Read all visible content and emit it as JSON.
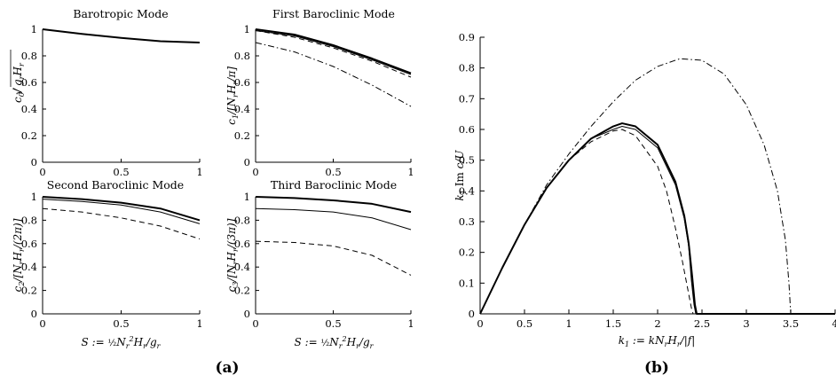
{
  "panel_labels": [
    "(a)",
    "(b)"
  ],
  "chart_data": [
    {
      "type": "line",
      "title": "Barotropic Mode",
      "xlabel": "",
      "ylabel": "c0/√(gr Hr)",
      "xlim": [
        0,
        1
      ],
      "ylim": [
        0,
        1
      ],
      "xticks": [
        "0",
        "0.5",
        "1"
      ],
      "yticks": [
        "0",
        "0.2",
        "0.4",
        "0.6",
        "0.8",
        "1"
      ],
      "x": [
        0,
        0.25,
        0.5,
        0.75,
        1.0
      ],
      "series": [
        {
          "style": "solid-thick",
          "values": [
            1.0,
            0.965,
            0.935,
            0.91,
            0.9
          ]
        }
      ]
    },
    {
      "type": "line",
      "title": "First Baroclinic Mode",
      "xlabel": "",
      "ylabel": "c1/[Nr Hr/π]",
      "xlim": [
        0,
        1
      ],
      "ylim": [
        0,
        1
      ],
      "xticks": [
        "0",
        "0.5",
        "1"
      ],
      "yticks": [
        "0",
        "0.2",
        "0.4",
        "0.6",
        "0.8",
        "1"
      ],
      "x": [
        0,
        0.25,
        0.5,
        0.75,
        1.0
      ],
      "series": [
        {
          "style": "solid-thick",
          "values": [
            1.0,
            0.96,
            0.88,
            0.78,
            0.67
          ]
        },
        {
          "style": "solid-thin",
          "values": [
            0.99,
            0.95,
            0.87,
            0.77,
            0.66
          ]
        },
        {
          "style": "dashed",
          "values": [
            0.99,
            0.94,
            0.86,
            0.76,
            0.64
          ]
        },
        {
          "style": "dashdot",
          "values": [
            0.9,
            0.83,
            0.72,
            0.58,
            0.42
          ]
        }
      ]
    },
    {
      "type": "line",
      "title": "Second Baroclinic Mode",
      "xlabel": "S := ½ Nr² Hr/gr",
      "ylabel": "c2/[Nr Hr/(2π)]",
      "xlim": [
        0,
        1
      ],
      "ylim": [
        0,
        1
      ],
      "xticks": [
        "0",
        "0.5",
        "1"
      ],
      "yticks": [
        "0",
        "0.2",
        "0.4",
        "0.6",
        "0.8",
        "1"
      ],
      "x": [
        0,
        0.25,
        0.5,
        0.75,
        1.0
      ],
      "series": [
        {
          "style": "solid-thick",
          "values": [
            1.0,
            0.98,
            0.95,
            0.9,
            0.8
          ]
        },
        {
          "style": "solid-thin",
          "values": [
            0.98,
            0.96,
            0.93,
            0.87,
            0.77
          ]
        },
        {
          "style": "dashed",
          "values": [
            0.9,
            0.87,
            0.82,
            0.75,
            0.64
          ]
        }
      ]
    },
    {
      "type": "line",
      "title": "Third Baroclinic Mode",
      "xlabel": "S := ½ Nr² Hr/gr",
      "ylabel": "c3/[Nr Hr/(3π)]",
      "xlim": [
        0,
        1
      ],
      "ylim": [
        0,
        1
      ],
      "xticks": [
        "0",
        "0.5",
        "1"
      ],
      "yticks": [
        "0",
        "0.2",
        "0.4",
        "0.6",
        "0.8",
        "1"
      ],
      "x": [
        0,
        0.25,
        0.5,
        0.75,
        1.0
      ],
      "series": [
        {
          "style": "solid-thick",
          "values": [
            1.0,
            0.99,
            0.97,
            0.94,
            0.87
          ]
        },
        {
          "style": "solid-thin",
          "values": [
            0.9,
            0.89,
            0.87,
            0.82,
            0.72
          ]
        },
        {
          "style": "dashed",
          "values": [
            0.62,
            0.61,
            0.58,
            0.5,
            0.33
          ]
        }
      ]
    },
    {
      "type": "line",
      "title": "",
      "xlabel": "k1 := k Nr Hr/|f|",
      "ylabel": "k1 Im c/U",
      "xlim": [
        0,
        4
      ],
      "ylim": [
        0,
        0.9
      ],
      "xticks": [
        "0",
        "0.5",
        "1",
        "1.5",
        "2",
        "2.5",
        "3",
        "3.5",
        "4"
      ],
      "yticks": [
        "0",
        "0.1",
        "0.2",
        "0.3",
        "0.4",
        "0.5",
        "0.6",
        "0.7",
        "0.8",
        "0.9"
      ],
      "series": [
        {
          "style": "solid-thick",
          "x": [
            0,
            0.25,
            0.5,
            0.75,
            1.0,
            1.25,
            1.5,
            1.6,
            1.75,
            2.0,
            2.2,
            2.3,
            2.35,
            2.39,
            2.42,
            2.44,
            4.0
          ],
          "y": [
            0,
            0.15,
            0.29,
            0.41,
            0.5,
            0.57,
            0.61,
            0.62,
            0.61,
            0.55,
            0.43,
            0.32,
            0.23,
            0.12,
            0.03,
            0,
            0
          ]
        },
        {
          "style": "solid-thin",
          "x": [
            0,
            0.25,
            0.5,
            0.75,
            1.0,
            1.25,
            1.5,
            1.6,
            1.75,
            2.0,
            2.2,
            2.3,
            2.35,
            2.38,
            2.41,
            2.43,
            4.0
          ],
          "y": [
            0,
            0.15,
            0.29,
            0.41,
            0.5,
            0.57,
            0.6,
            0.61,
            0.6,
            0.54,
            0.42,
            0.31,
            0.22,
            0.11,
            0.03,
            0,
            0
          ]
        },
        {
          "style": "dashed",
          "x": [
            0,
            0.25,
            0.5,
            0.75,
            1.0,
            1.25,
            1.5,
            1.6,
            1.75,
            2.0,
            2.1,
            2.2,
            2.28,
            2.34,
            2.38,
            2.4,
            4.0
          ],
          "y": [
            0,
            0.15,
            0.29,
            0.41,
            0.5,
            0.56,
            0.595,
            0.6,
            0.58,
            0.48,
            0.4,
            0.28,
            0.17,
            0.08,
            0.02,
            0,
            0
          ]
        },
        {
          "style": "dashdot",
          "x": [
            0,
            0.25,
            0.5,
            0.75,
            1.0,
            1.25,
            1.5,
            1.75,
            2.0,
            2.25,
            2.5,
            2.75,
            3.0,
            3.2,
            3.35,
            3.44,
            3.48,
            3.5,
            4.0
          ],
          "y": [
            0,
            0.15,
            0.29,
            0.42,
            0.52,
            0.61,
            0.69,
            0.76,
            0.805,
            0.83,
            0.825,
            0.78,
            0.68,
            0.55,
            0.4,
            0.24,
            0.1,
            0,
            0
          ]
        }
      ]
    }
  ]
}
